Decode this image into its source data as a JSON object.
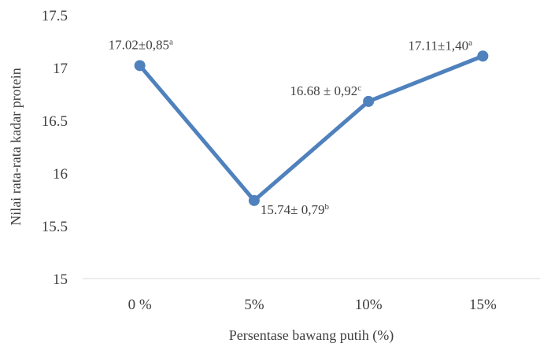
{
  "chart_data": {
    "type": "line",
    "categories": [
      "0 %",
      "5%",
      "10%",
      "15%"
    ],
    "series": [
      {
        "values": [
          17.02,
          15.74,
          16.68,
          17.11
        ],
        "color": "#4f81bd"
      }
    ],
    "data_labels": [
      {
        "text": "17.02±0,85",
        "sup": "a"
      },
      {
        "text": "15.74± 0,79",
        "sup": "b"
      },
      {
        "text": "16.68 ± 0,92",
        "sup": "c"
      },
      {
        "text": "17.11±1,40",
        "sup": "a"
      }
    ],
    "y_ticks": [
      "15",
      "15.5",
      "16",
      "16.5",
      "17",
      "17.5"
    ],
    "ylim": [
      15,
      17.5
    ],
    "xlabel": "Persentase bawang putih (%)",
    "ylabel": "Nilai rata-rata kadar protein",
    "grid": false,
    "legend": "none"
  }
}
